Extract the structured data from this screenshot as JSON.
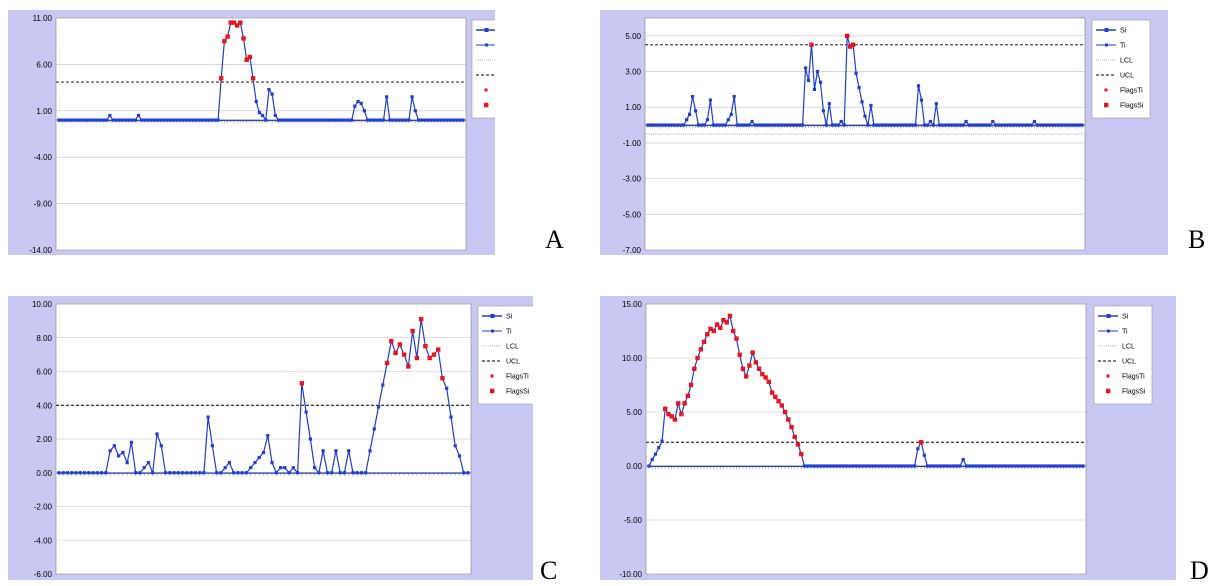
{
  "panel_labels": [
    "A",
    "B",
    "C",
    "D"
  ],
  "colors": {
    "frame_bg": "#c8c8f2",
    "plot_bg": "#ffffff",
    "si_line": "#1f3fd0",
    "flag": "#e8141e",
    "ucl": "#000000",
    "lcl": "#999999",
    "grid": "#c0c0c0"
  },
  "chart_data": [
    {
      "type": "line",
      "panel": "A",
      "yticks": [
        "11.00",
        "6.00",
        "1.00",
        "-4.00",
        "-9.00",
        "-14.00"
      ],
      "ylim": [
        -14,
        11
      ],
      "ucl": 4.1,
      "lcl": 0.0,
      "legend": [
        "Si",
        "Ti",
        "LCL",
        "UCL",
        "FlagsTi",
        "FlagsSi"
      ],
      "legend_position": "top-right",
      "grid": true,
      "si_values": [
        0,
        0,
        0,
        0,
        0,
        0,
        0,
        0,
        0,
        0,
        0,
        0,
        0,
        0,
        0,
        0,
        0.5,
        0,
        0,
        0,
        0,
        0,
        0,
        0,
        0,
        0.5,
        0,
        0,
        0,
        0,
        0,
        0,
        0,
        0,
        0,
        0,
        0,
        0,
        0,
        0,
        0,
        0,
        0,
        0,
        0,
        0,
        0,
        0,
        0,
        0,
        0,
        4.5,
        8.5,
        9,
        10.5,
        10.5,
        10.2,
        10.5,
        8.8,
        6.5,
        6.8,
        4.5,
        2,
        0.8,
        0.5,
        0,
        3.3,
        2.8,
        0.5,
        0,
        0,
        0,
        0,
        0,
        0,
        0,
        0,
        0,
        0,
        0,
        0,
        0,
        0,
        0,
        0,
        0,
        0,
        0,
        0,
        0,
        0,
        0,
        0,
        1.5,
        2,
        1.8,
        1,
        0,
        0,
        0,
        0,
        0,
        0,
        2.5,
        0,
        0,
        0,
        0,
        0,
        0,
        0,
        2.5,
        1,
        0,
        0,
        0,
        0,
        0,
        0,
        0,
        0,
        0,
        0,
        0,
        0,
        0,
        0,
        0
      ],
      "flag_start": 51,
      "flag_end": 61
    },
    {
      "type": "line",
      "panel": "B",
      "yticks": [
        "5.00",
        "3.00",
        "1.00",
        "-1.00",
        "-3.00",
        "-5.00",
        "-7.00"
      ],
      "ylim": [
        -7,
        6
      ],
      "ucl": 4.5,
      "lcl": -0.5,
      "legend": [
        "Si",
        "Ti",
        "LCL",
        "UCL",
        "FlagsTi",
        "FlagsSi"
      ],
      "legend_position": "top-right",
      "grid": true,
      "si_values": [
        0,
        0,
        0,
        0,
        0,
        0,
        0,
        0,
        0,
        0,
        0,
        0,
        0,
        0.3,
        0.6,
        1.6,
        0.8,
        0,
        0,
        0,
        0.3,
        1.4,
        0,
        0,
        0,
        0,
        0,
        0.3,
        0.6,
        1.6,
        0,
        0,
        0,
        0,
        0,
        0.2,
        0,
        0,
        0,
        0,
        0,
        0,
        0,
        0,
        0,
        0,
        0,
        0,
        0,
        0,
        0,
        0,
        0,
        3.2,
        2.5,
        4.5,
        2,
        3,
        2.4,
        0.8,
        0,
        1.2,
        0,
        0,
        0,
        0.2,
        0,
        5,
        4.4,
        4.5,
        2.9,
        2.1,
        1.3,
        0.5,
        0,
        1.1,
        0,
        0,
        0,
        0,
        0,
        0,
        0,
        0,
        0,
        0,
        0,
        0,
        0,
        0,
        0,
        2.2,
        1.4,
        0,
        0,
        0.2,
        0,
        1.2,
        0,
        0,
        0,
        0,
        0,
        0,
        0,
        0,
        0,
        0.2,
        0,
        0,
        0,
        0,
        0,
        0,
        0,
        0,
        0.2,
        0,
        0,
        0,
        0,
        0,
        0,
        0,
        0,
        0,
        0,
        0,
        0,
        0,
        0.2,
        0,
        0,
        0,
        0,
        0,
        0,
        0,
        0,
        0,
        0,
        0,
        0,
        0,
        0,
        0,
        0
      ],
      "flag_points": [
        55,
        67,
        68,
        69
      ]
    },
    {
      "type": "line",
      "panel": "C",
      "yticks": [
        "10.00",
        "8.00",
        "6.00",
        "4.00",
        "2.00",
        "0.00",
        "-2.00",
        "-4.00",
        "-6.00"
      ],
      "ylim": [
        -6,
        10
      ],
      "ucl": 4.0,
      "lcl": 0.0,
      "legend": [
        "Si",
        "Ti",
        "LCL",
        "UCL",
        "FlagsTi",
        "FlagsSi"
      ],
      "legend_position": "top-right",
      "grid": true,
      "si_values": [
        0,
        0,
        0,
        0,
        0,
        0,
        0,
        0,
        0,
        0,
        0,
        0,
        1.3,
        1.6,
        1,
        1.2,
        0.6,
        1.8,
        0,
        0,
        0.3,
        0.6,
        0,
        2.3,
        1.6,
        0,
        0,
        0,
        0,
        0,
        0,
        0,
        0,
        0,
        0,
        3.3,
        1.6,
        0,
        0,
        0.3,
        0.6,
        0,
        0,
        0,
        0,
        0.3,
        0.6,
        0.9,
        1.2,
        2.2,
        0.6,
        0,
        0.3,
        0.3,
        0,
        0.3,
        0,
        5.3,
        3.6,
        2,
        0.3,
        0,
        1.3,
        0,
        0,
        1.3,
        0,
        0,
        1.3,
        0,
        0,
        0,
        0,
        1.3,
        2.6,
        3.9,
        5.2,
        6.5,
        7.8,
        7.1,
        7.6,
        7,
        6.3,
        8.4,
        6.8,
        9.1,
        7.5,
        6.8,
        7,
        7.3,
        5.6,
        5,
        3.3,
        1.6,
        1,
        0,
        0
      ],
      "flag_start": 77,
      "flag_end": 90,
      "extra_flags": [
        57
      ]
    },
    {
      "type": "line",
      "panel": "D",
      "yticks": [
        "15.00",
        "10.00",
        "5.00",
        "0.00",
        "-5.00",
        "-10.00"
      ],
      "ylim": [
        -10,
        15
      ],
      "ucl": 2.2,
      "lcl": 0.0,
      "legend": [
        "Si",
        "Ti",
        "LCL",
        "UCL",
        "FlagsTi",
        "FlagsSi"
      ],
      "legend_position": "top-right",
      "grid": true,
      "si_values": [
        0,
        0.6,
        1.1,
        1.7,
        2.3,
        5.3,
        4.8,
        4.6,
        4.3,
        5.8,
        4.8,
        5.8,
        6.5,
        7.5,
        9,
        10,
        10.8,
        11.5,
        12.2,
        12.7,
        12.5,
        13.1,
        12.8,
        13.5,
        13.3,
        13.9,
        12.5,
        11.8,
        10.3,
        9,
        8.3,
        9.3,
        10.5,
        9.6,
        9,
        8.5,
        8.2,
        7.8,
        6.8,
        6.4,
        6,
        5.6,
        5,
        4.3,
        3.6,
        2.7,
        2,
        1.1,
        0,
        0,
        0,
        0,
        0,
        0,
        0,
        0,
        0,
        0,
        0,
        0,
        0,
        0,
        0,
        0,
        0,
        0,
        0,
        0,
        0,
        0,
        0,
        0,
        0,
        0,
        0,
        0,
        0,
        0,
        0,
        0,
        0,
        0,
        0,
        1.6,
        2.2,
        1,
        0,
        0,
        0,
        0,
        0,
        0,
        0,
        0,
        0,
        0,
        0,
        0.6,
        0,
        0,
        0,
        0,
        0,
        0,
        0,
        0,
        0,
        0,
        0,
        0,
        0,
        0,
        0,
        0,
        0,
        0,
        0,
        0,
        0,
        0,
        0,
        0,
        0,
        0,
        0,
        0,
        0,
        0,
        0,
        0,
        0,
        0,
        0,
        0,
        0
      ],
      "flag_start": 5,
      "flag_end": 47,
      "extra_flags": [
        84
      ]
    }
  ]
}
